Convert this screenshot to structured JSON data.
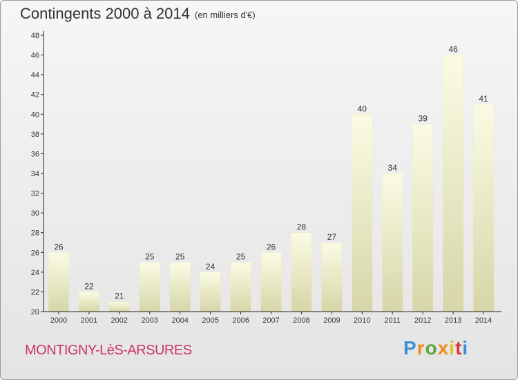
{
  "title": "Contingents 2000 à 2014",
  "subtitle": "(en milliers d'€)",
  "commune": "MONTIGNY-LèS-ARSURES",
  "logo": "Proxiti",
  "colors": {
    "commune": "#cc3366",
    "bar_top": "#fbfbe4",
    "bar_bottom": "#d6d6a8",
    "axis": "#222222",
    "text": "#333333"
  },
  "chart_data": {
    "type": "bar",
    "categories": [
      "2000",
      "2001",
      "2002",
      "2003",
      "2004",
      "2005",
      "2006",
      "2007",
      "2008",
      "2009",
      "2010",
      "2011",
      "2012",
      "2013",
      "2014"
    ],
    "values": [
      26,
      22,
      21,
      25,
      25,
      24,
      25,
      26,
      28,
      27,
      40,
      34,
      39,
      46,
      41
    ],
    "ylim": [
      20,
      48
    ],
    "yticks": [
      20,
      22,
      24,
      26,
      28,
      30,
      32,
      34,
      36,
      38,
      40,
      42,
      44,
      46,
      48
    ],
    "grid": false,
    "data_labels": true
  }
}
